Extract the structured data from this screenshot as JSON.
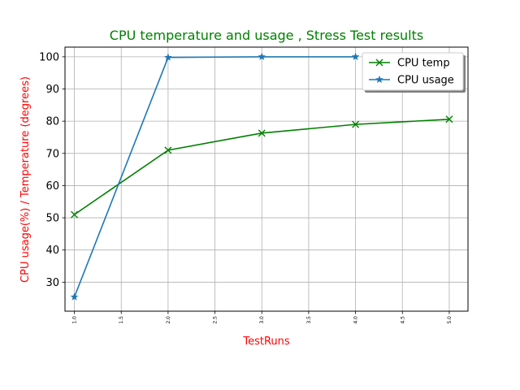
{
  "chart_data": {
    "type": "line",
    "title": "CPU temperature and usage , Stress Test results",
    "xlabel": "TestRuns",
    "ylabel": "CPU usage(%) / Temperature (degrees)",
    "xlim": [
      0.9,
      5.2
    ],
    "ylim": [
      21,
      103
    ],
    "x_ticks": [
      "1.0",
      "1.5",
      "2.0",
      "2.5",
      "3.0",
      "3.5",
      "4.0",
      "4.5",
      "5.0"
    ],
    "y_ticks": [
      "30",
      "40",
      "50",
      "60",
      "70",
      "80",
      "90",
      "100"
    ],
    "grid": true,
    "legend_position": "top-right",
    "series": [
      {
        "name": "CPU temp",
        "color": "#008000",
        "marker": "x",
        "x": [
          1,
          2,
          3,
          4,
          5
        ],
        "y": [
          51,
          71,
          76.3,
          79,
          80.6
        ]
      },
      {
        "name": "CPU usage",
        "color": "#1f77b4",
        "marker": "star",
        "x": [
          1,
          2,
          3,
          4
        ],
        "y": [
          25.4,
          99.8,
          100,
          100
        ]
      }
    ],
    "title_color": "#008000",
    "label_color": "#ff0000"
  }
}
